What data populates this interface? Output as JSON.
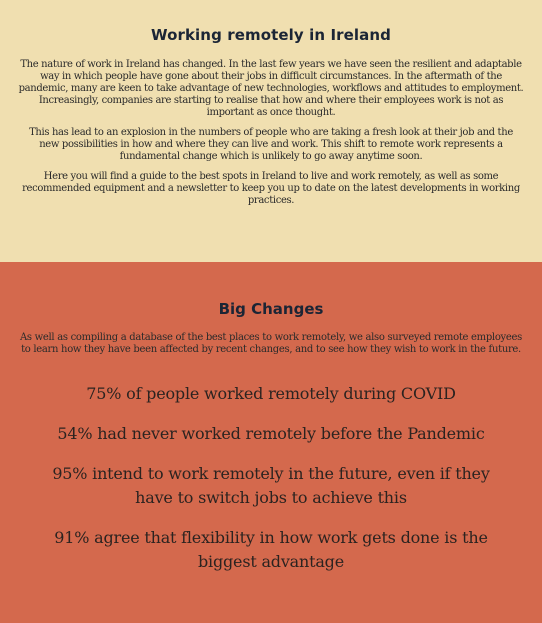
{
  "intro": {
    "title": "Working remotely in Ireland",
    "paragraphs": [
      "The nature of work in Ireland has changed. In the last few years we have seen the resilient and adaptable way in which people have gone about their jobs in difficult circumstances. In the aftermath of the pandemic, many are keen to take advantage of new technologies, workflows and attitudes to employment. Increasingly, companies are starting to realise that how and where their employees work is not as important as once thought.",
      "This has lead to an explosion in the numbers of people who are taking a fresh look at their job and the new possibilities in how and where they can live and work. This shift to remote work represents a fundamental change which is unlikely to go away anytime soon.",
      "Here you will find a guide to the best spots in Ireland to live and work remotely, as well as some recommended equipment and a newsletter to keep you up to date on the latest developments in working practices."
    ]
  },
  "changes": {
    "title": "Big Changes",
    "lead": "As well as compiling a database of the best places to work remotely, we also surveyed remote employees to learn how they have been affected by recent changes, and to see how they wish to work in the future.",
    "stats": [
      "75% of people worked remotely during COVID",
      "54% had never worked remotely before the Pandemic",
      "95% intend to work remotely in the future, even if they have to switch jobs to achieve this",
      "91% agree that flexibility in how work gets done is the biggest advantage"
    ]
  },
  "colors": {
    "intro_background": "#f0dfb0",
    "changes_background": "#d4694d",
    "heading": "#1b2535"
  }
}
